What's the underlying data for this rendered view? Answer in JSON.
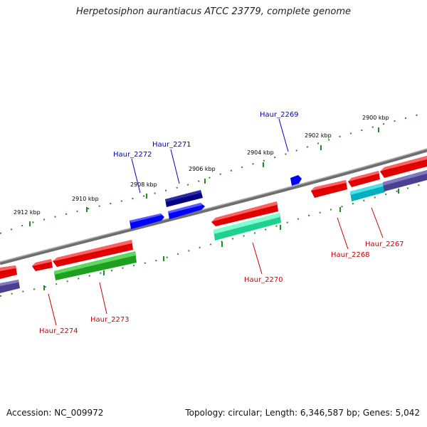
{
  "title": "Herpetosiphon aurantiacus ATCC 23779, complete genome",
  "footer": {
    "accession": "Accession: NC_009972",
    "summary": "Topology: circular; Length: 6,346,587 bp; Genes: 5,042"
  },
  "colors": {
    "backbone": "#808080",
    "tick_dots": "#228b22",
    "upper_label": "#0000cc",
    "lower_label": "#cc0000",
    "tick_label": "#000000"
  },
  "scale_labels": [
    "2912 kbp",
    "2910 kbp",
    "2908 kbp",
    "2906 kbp",
    "2904 kbp",
    "2902 kbp",
    "2900 kbp"
  ],
  "gene_labels": {
    "forward": [
      "Haur_2272",
      "Haur_2271",
      "Haur_2269"
    ],
    "reverse": [
      "Haur_2274",
      "Haur_2273",
      "Haur_2270",
      "Haur_2268",
      "Haur_2267"
    ]
  }
}
